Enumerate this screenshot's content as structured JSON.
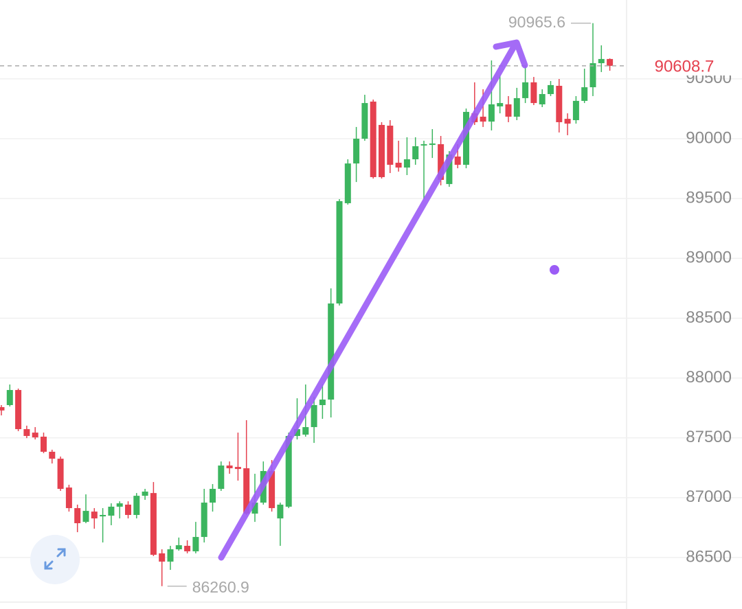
{
  "chart_data": {
    "type": "candlestick",
    "up_color": "#3cb55f",
    "down_color": "#e5414f",
    "ylim": [
      86070,
      91159
    ],
    "yticks": [
      86500,
      87000,
      87500,
      88000,
      88500,
      89000,
      89500,
      90000,
      90500
    ],
    "grid": true,
    "open": [
      87757,
      87774,
      87900,
      87573,
      87544,
      87510,
      87384,
      87326,
      87085,
      86913,
      86798,
      86884,
      86844,
      86850,
      86925,
      86942,
      86856,
      87016,
      87039,
      86535,
      86466,
      86569,
      86598,
      86552,
      86672,
      86959,
      87074,
      87269,
      87257,
      87246,
      86867,
      86959,
      87223,
      86827,
      86925,
      87516,
      87527,
      87590,
      87774,
      87820,
      88623,
      89461,
      89793,
      90000,
      90310,
      90115,
      90109,
      89799,
      89759,
      89828,
      89943,
      89948,
      89954,
      89621,
      89851,
      89782,
      90212,
      90184,
      90143,
      90270,
      90287,
      90184,
      90339,
      90471,
      90287,
      90373,
      90442,
      90166,
      90155,
      90316,
      90430,
      90631,
      90666
    ],
    "high": [
      87774,
      87946,
      87912,
      87602,
      87590,
      87544,
      87401,
      87344,
      87108,
      86942,
      87028,
      86913,
      86913,
      86953,
      86970,
      86970,
      87039,
      87074,
      87131,
      86569,
      86598,
      86667,
      86644,
      86798,
      87074,
      87114,
      87303,
      87303,
      87544,
      87648,
      87200,
      87303,
      87315,
      86959,
      87544,
      87831,
      87946,
      87843,
      87946,
      88749,
      89495,
      89828,
      90098,
      90367,
      90327,
      90138,
      90155,
      89983,
      90012,
      90012,
      89983,
      90080,
      90023,
      89897,
      89954,
      90252,
      90471,
      90413,
      90654,
      90528,
      90356,
      90425,
      90614,
      90516,
      90413,
      90482,
      90499,
      90212,
      90356,
      90585,
      90965.6,
      90780,
      90671
    ],
    "low": [
      87688,
      87762,
      87556,
      87498,
      87487,
      87372,
      87286,
      87057,
      86884,
      86712,
      86787,
      86741,
      86626,
      86770,
      86827,
      86827,
      86827,
      86982,
      86512,
      86260.9,
      86397,
      86557,
      86535,
      86535,
      86626,
      86884,
      87057,
      87200,
      87143,
      86856,
      86798,
      86942,
      86884,
      86598,
      86913,
      87487,
      87510,
      87458,
      87659,
      87671,
      88606,
      89449,
      89638,
      89983,
      89667,
      89667,
      89713,
      89725,
      89696,
      89782,
      89495,
      89839,
      89610,
      89598,
      89753,
      89753,
      90115,
      90098,
      90069,
      90212,
      90138,
      90155,
      90298,
      90281,
      90264,
      90356,
      90052,
      90029,
      90126,
      90298,
      90356,
      90557,
      90568
    ],
    "close": [
      87729,
      87900,
      87573,
      87516,
      87504,
      87384,
      87326,
      87074,
      86913,
      86787,
      86890,
      86827,
      86856,
      86925,
      86953,
      86856,
      87016,
      87051,
      86523,
      86466,
      86569,
      86603,
      86552,
      86672,
      86959,
      87074,
      87269,
      87246,
      87240,
      86867,
      86959,
      87223,
      86913,
      86942,
      87516,
      87573,
      87590,
      87774,
      87820,
      88623,
      89478,
      89793,
      90000,
      90298,
      89679,
      89679,
      89782,
      89759,
      89828,
      89937,
      89954,
      89960,
      89656,
      89868,
      89782,
      90224,
      90138,
      90143,
      90287,
      90298,
      90184,
      90339,
      90471,
      90298,
      90373,
      90448,
      90138,
      90126,
      90316,
      90430,
      90631,
      90666,
      90608.7
    ]
  }
}
